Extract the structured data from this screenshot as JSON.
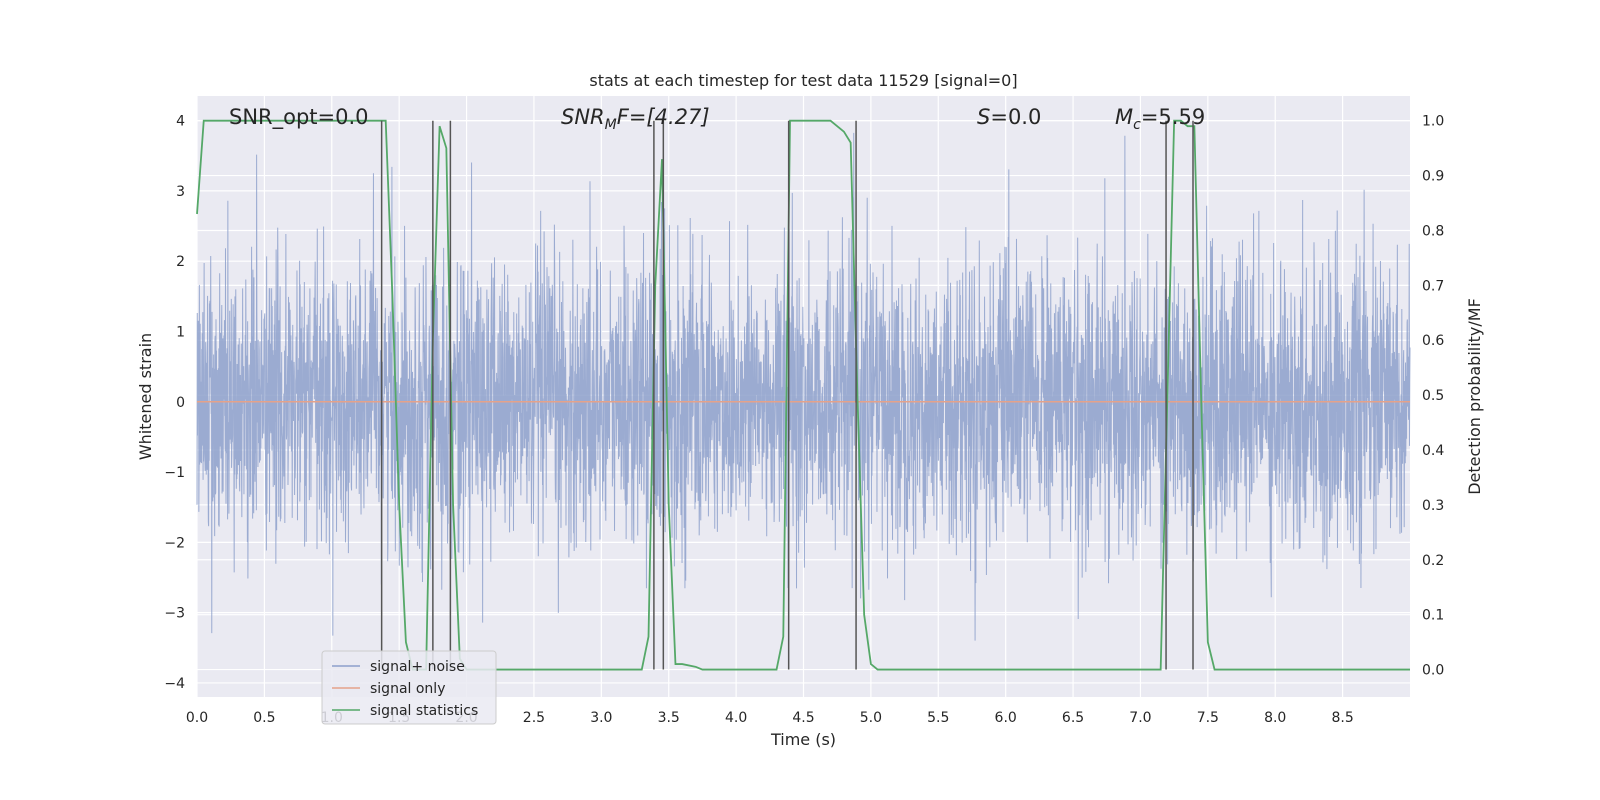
{
  "chart_data": {
    "type": "line",
    "title": "stats at each timestep for test data 11529 [signal=0]",
    "xlabel": "Time (s)",
    "ylabel_left": "Whitened strain",
    "ylabel_right": "Detection probability/MF",
    "xlim": [
      0.0,
      9.0
    ],
    "ylim_left": [
      -4.2,
      4.35
    ],
    "ylim_right": [
      -0.05,
      1.045
    ],
    "x_ticks": [
      "0.0",
      "0.5",
      "1.0",
      "1.5",
      "2.0",
      "2.5",
      "3.0",
      "3.5",
      "4.0",
      "4.5",
      "5.0",
      "5.5",
      "6.0",
      "6.5",
      "7.0",
      "7.5",
      "8.0",
      "8.5"
    ],
    "y_left_ticks": [
      "4",
      "3",
      "2",
      "1",
      "0",
      "−1",
      "−2",
      "−3",
      "−4"
    ],
    "y_right_ticks": [
      "1.0",
      "0.9",
      "0.8",
      "0.7",
      "0.6",
      "0.5",
      "0.4",
      "0.3",
      "0.2",
      "0.1",
      "0.0"
    ],
    "grid": true,
    "legend_position": "lower-left",
    "annotations": {
      "snr_opt": "SNR_opt=0.0",
      "snr_mf_sym": "SNR",
      "snr_mf_sub": "M",
      "snr_mf_rest": "F=[4.27]",
      "s_sym": "S",
      "s_rest": "=0.0",
      "mc_sym": "M",
      "mc_sub": "c",
      "mc_rest": "=5.59"
    },
    "series": [
      {
        "name": "signal+ noise",
        "color": "#8da0cb",
        "axis": "left",
        "description": "whitened strain noise, roughly within -4 to 4.1",
        "envelope": {
          "typical_amplitude": 1.5,
          "max": 4.05,
          "min": -3.9
        }
      },
      {
        "name": "signal only",
        "color": "#e5a28a",
        "axis": "left",
        "x": [
          0.0,
          9.0
        ],
        "y": [
          0.0,
          0.0
        ]
      },
      {
        "name": "signal statistics",
        "color": "#55a868",
        "axis": "right",
        "x": [
          0.0,
          0.05,
          0.1,
          0.3,
          1.0,
          1.3,
          1.35,
          1.4,
          1.45,
          1.5,
          1.55,
          1.6,
          1.65,
          1.7,
          1.75,
          1.8,
          1.85,
          1.9,
          1.95,
          2.0,
          2.5,
          3.0,
          3.3,
          3.35,
          3.4,
          3.45,
          3.5,
          3.55,
          3.6,
          3.7,
          3.75,
          3.8,
          4.0,
          4.3,
          4.35,
          4.4,
          4.45,
          4.5,
          4.7,
          4.75,
          4.8,
          4.85,
          4.9,
          4.95,
          5.0,
          5.05,
          5.1,
          6.0,
          7.0,
          7.1,
          7.15,
          7.2,
          7.25,
          7.3,
          7.35,
          7.4,
          7.45,
          7.5,
          7.55,
          8.0,
          9.0
        ],
        "y": [
          0.83,
          1.0,
          1.0,
          1.0,
          1.0,
          1.0,
          1.0,
          1.0,
          0.68,
          0.3,
          0.05,
          0.0,
          0.0,
          0.0,
          0.6,
          0.99,
          0.95,
          0.3,
          0.02,
          0.0,
          0.0,
          0.0,
          0.0,
          0.06,
          0.7,
          0.93,
          0.3,
          0.01,
          0.01,
          0.005,
          0.0,
          0.0,
          0.0,
          0.0,
          0.06,
          1.0,
          1.0,
          1.0,
          1.0,
          0.99,
          0.98,
          0.96,
          0.5,
          0.1,
          0.01,
          0.0,
          0.0,
          0.0,
          0.0,
          0.0,
          0.0,
          0.5,
          1.0,
          1.0,
          0.99,
          0.99,
          0.5,
          0.05,
          0.0,
          0.0,
          0.0
        ]
      }
    ],
    "vertical_lines": {
      "color": "#555555",
      "axis": "right",
      "x": [
        1.37,
        1.75,
        1.88,
        3.39,
        3.46,
        4.39,
        4.89,
        7.19,
        7.39
      ],
      "y_range": [
        0.0,
        1.0
      ]
    }
  }
}
